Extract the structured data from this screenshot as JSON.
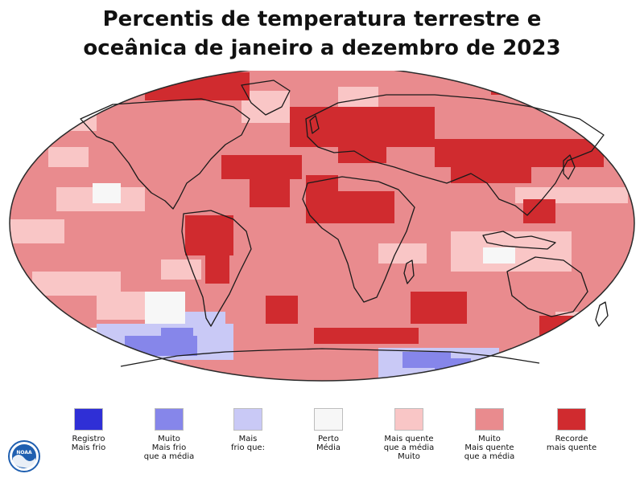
{
  "title": {
    "line1": "Percentis de temperatura terrestre e",
    "line2": "oceânica de janeiro a dezembro de 2023"
  },
  "colors": {
    "record_cold": "#2f2fd6",
    "much_cooler": "#8686ea",
    "cooler": "#c9c9f6",
    "near_average": "#f7f7f7",
    "warmer": "#f9c6c6",
    "much_warmer": "#e98b8e",
    "record_warmest": "#d02b2f",
    "land_outline": "#1a1a1a",
    "noaa_blue": "#1f5fb0"
  },
  "legend": [
    {
      "key": "record_cold",
      "color": "#2f2fd6",
      "label": "Registro\nMais frio"
    },
    {
      "key": "much_cooler",
      "color": "#8686ea",
      "label": "Muito\nMais frio\nque a média"
    },
    {
      "key": "cooler",
      "color": "#c9c9f6",
      "label": "Mais\nfrio que:"
    },
    {
      "key": "near_average",
      "color": "#f7f7f7",
      "label": "Perto\nMédia"
    },
    {
      "key": "warmer",
      "color": "#f9c6c6",
      "label": "Mais quente\nque a média\nMuito"
    },
    {
      "key": "much_warmer",
      "color": "#e98b8e",
      "label": "Muito\nMais quente\nque a média"
    },
    {
      "key": "record_warmest",
      "color": "#d02b2f",
      "label": "Recorde\nmais quente"
    }
  ],
  "logo": {
    "text": "NOAA"
  }
}
